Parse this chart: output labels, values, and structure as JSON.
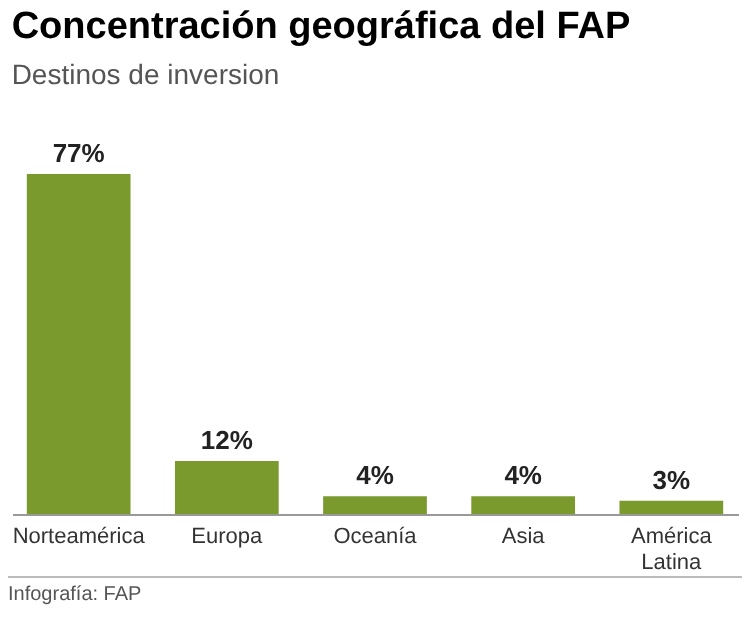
{
  "chart_data": {
    "type": "bar",
    "title": "Concentración geográfica del FAP",
    "subtitle": "Destinos de inversion",
    "categories": [
      "Norteamérica",
      "Europa",
      "Oceanía",
      "Asia",
      "América Latina"
    ],
    "values": [
      77,
      12,
      4,
      4,
      3
    ],
    "value_labels": [
      "77%",
      "12%",
      "4%",
      "4%",
      "3%"
    ],
    "color": "#7a9a2e",
    "annotations": [
      "Infografía: FAP"
    ]
  }
}
